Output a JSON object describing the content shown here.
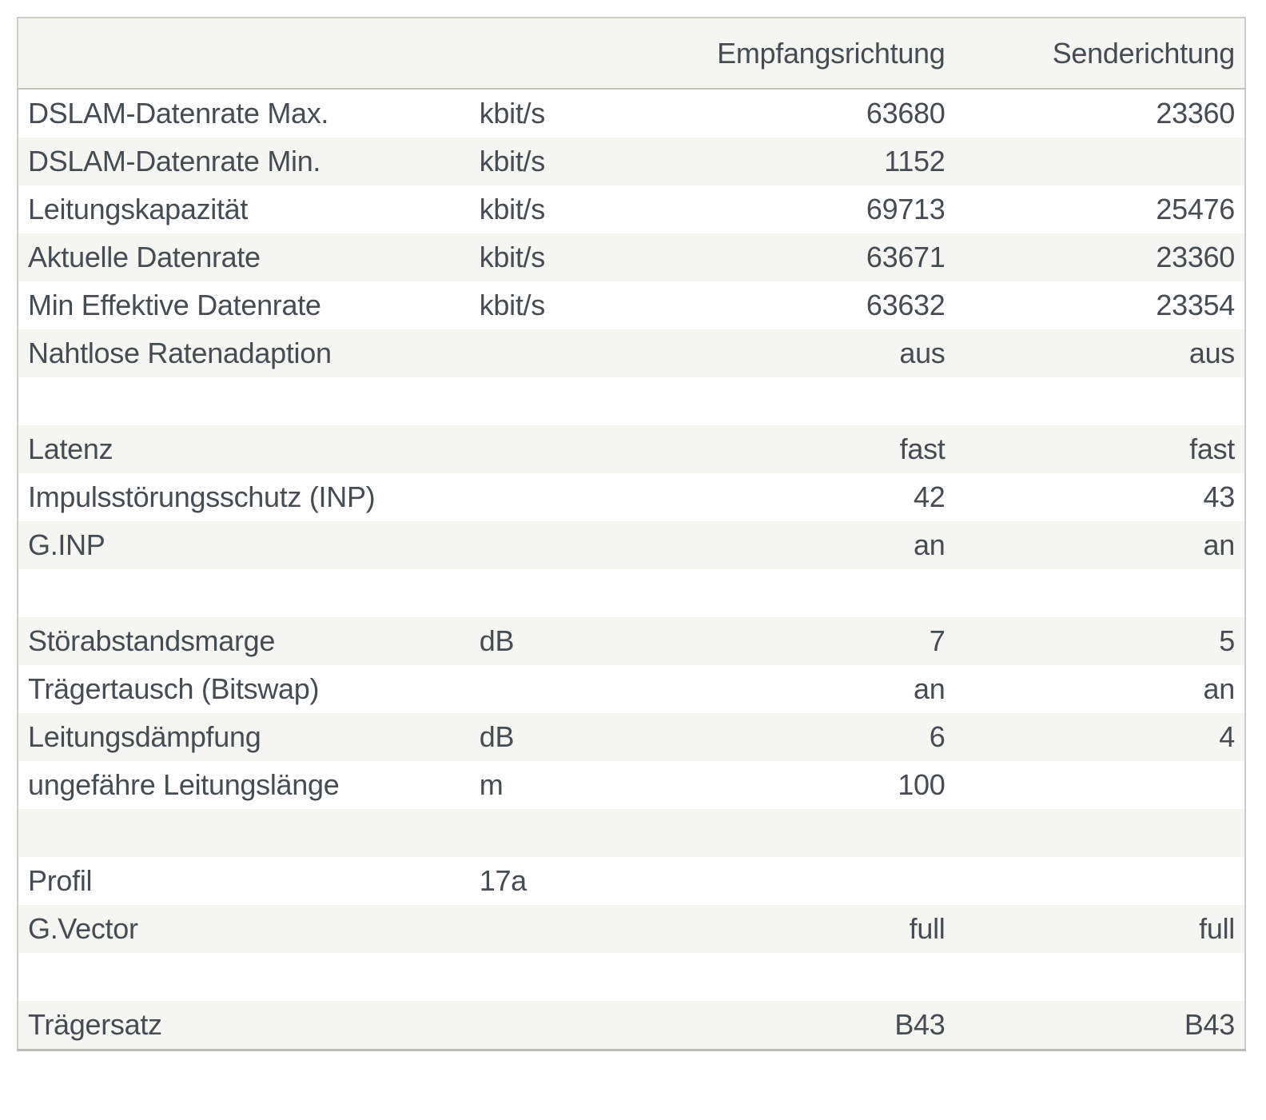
{
  "table": {
    "header": {
      "label": "",
      "unit": "",
      "rx": "Empfangsrichtung",
      "tx": "Senderichtung"
    },
    "rows": [
      {
        "label": "DSLAM-Datenrate Max.",
        "unit": "kbit/s",
        "rx": "63680",
        "tx": "23360"
      },
      {
        "label": "DSLAM-Datenrate Min.",
        "unit": "kbit/s",
        "rx": "1152",
        "tx": ""
      },
      {
        "label": "Leitungskapazität",
        "unit": "kbit/s",
        "rx": "69713",
        "tx": "25476"
      },
      {
        "label": "Aktuelle Datenrate",
        "unit": "kbit/s",
        "rx": "63671",
        "tx": "23360"
      },
      {
        "label": "Min Effektive Datenrate",
        "unit": "kbit/s",
        "rx": "63632",
        "tx": "23354"
      },
      {
        "label": "Nahtlose Ratenadaption",
        "unit": "",
        "rx": "aus",
        "tx": "aus"
      },
      {
        "label": "",
        "unit": "",
        "rx": "",
        "tx": ""
      },
      {
        "label": "Latenz",
        "unit": "",
        "rx": "fast",
        "tx": "fast"
      },
      {
        "label": "Impulsstörungsschutz (INP)",
        "unit": "",
        "rx": "42",
        "tx": "43"
      },
      {
        "label": "G.INP",
        "unit": "",
        "rx": "an",
        "tx": "an"
      },
      {
        "label": "",
        "unit": "",
        "rx": "",
        "tx": ""
      },
      {
        "label": "Störabstandsmarge",
        "unit": "dB",
        "rx": "7",
        "tx": "5"
      },
      {
        "label": "Trägertausch (Bitswap)",
        "unit": "",
        "rx": "an",
        "tx": "an"
      },
      {
        "label": "Leitungsdämpfung",
        "unit": "dB",
        "rx": "6",
        "tx": "4"
      },
      {
        "label": "ungefähre Leitungslänge",
        "unit": "m",
        "rx": "100",
        "tx": ""
      },
      {
        "label": "",
        "unit": "",
        "rx": "",
        "tx": ""
      },
      {
        "label": "Profil",
        "unit": "17a",
        "rx": "",
        "tx": ""
      },
      {
        "label": "G.Vector",
        "unit": "",
        "rx": "full",
        "tx": "full"
      },
      {
        "label": "",
        "unit": "",
        "rx": "",
        "tx": ""
      },
      {
        "label": "Trägersatz",
        "unit": "",
        "rx": "B43",
        "tx": "B43"
      }
    ],
    "colors": {
      "text": "#454c54",
      "stripe_background": "#f5f5f2",
      "header_background": "#f5f5f2",
      "outer_border": "#cdcdc8",
      "header_divider": "#c3c3be",
      "row_background": "#ffffff"
    }
  }
}
